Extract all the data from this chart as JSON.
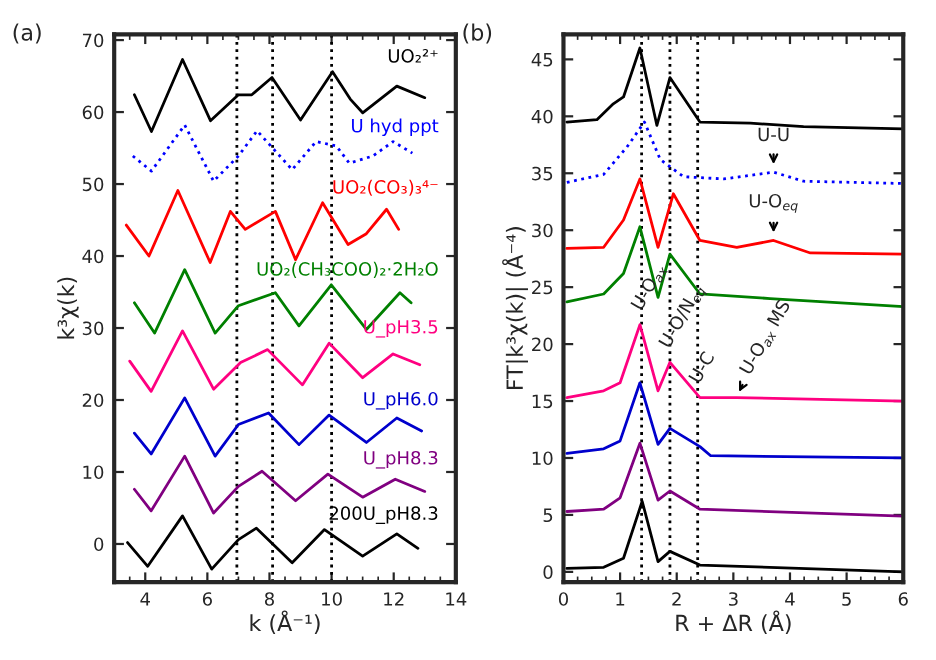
{
  "chart_data": [
    {
      "type": "line",
      "xlabel": "k (Å⁻¹)",
      "ylabel": "k³χ(k)",
      "xlim": [
        3,
        14
      ],
      "ylim": [
        -5.3,
        70.8
      ],
      "xticks": [
        4,
        6,
        8,
        10,
        12,
        14
      ],
      "yticks": [
        0,
        10,
        20,
        30,
        40,
        50,
        60,
        70
      ],
      "marker": "none",
      "legend": false,
      "grid": false,
      "annotations": [
        "(a)"
      ],
      "ref_lines": [
        {
          "axis": "x",
          "value": 6.95,
          "color": "#000000",
          "line_style": "dotted"
        },
        {
          "axis": "x",
          "value": 8.1,
          "color": "#000000",
          "line_style": "dotted"
        },
        {
          "axis": "x",
          "value": 10.0,
          "color": "#000000",
          "line_style": "dotted"
        }
      ],
      "series": [
        {
          "name": "UO₂²⁺",
          "color": "#000000",
          "line_style": "solid",
          "x": [
            3.65,
            4.2,
            5.2,
            6.1,
            7.0,
            7.43,
            8.08,
            9.0,
            10.03,
            10.6,
            11.0,
            12.1,
            13.0
          ],
          "values": [
            62.4,
            57.3,
            67.3,
            58.8,
            62.4,
            62.4,
            64.8,
            58.9,
            65.6,
            61.8,
            59.9,
            63.6,
            62.0
          ]
        },
        {
          "name": "U hyd ppt",
          "color": "#0000ff",
          "line_style": "dotted",
          "x": [
            3.6,
            4.2,
            5.27,
            6.2,
            7.0,
            7.6,
            8.73,
            9.5,
            10.15,
            10.57,
            11.33,
            11.98,
            12.6
          ],
          "values": [
            53.9,
            51.8,
            58.2,
            50.4,
            53.9,
            57.4,
            52.0,
            55.9,
            55.3,
            52.9,
            53.9,
            55.9,
            54.3
          ]
        },
        {
          "name": "UO₂(CO₃)₃⁴⁻",
          "color": "#ff0000",
          "line_style": "solid",
          "x": [
            3.39,
            4.12,
            5.05,
            6.09,
            6.74,
            7.22,
            8.19,
            8.84,
            9.71,
            10.53,
            11.12,
            11.77,
            12.16
          ],
          "values": [
            44.3,
            40.0,
            49.1,
            39.1,
            46.2,
            43.7,
            46.2,
            39.5,
            47.4,
            41.6,
            43.1,
            46.5,
            43.7
          ]
        },
        {
          "name": "UO₂(CH₃COO)₂·2H₂O",
          "color": "#008000",
          "line_style": "solid",
          "x": [
            3.65,
            4.3,
            5.27,
            6.25,
            7.0,
            8.19,
            8.95,
            9.99,
            11.12,
            12.2,
            12.56
          ],
          "values": [
            33.5,
            29.3,
            38.1,
            29.3,
            33.1,
            34.9,
            30.3,
            36.0,
            29.8,
            34.9,
            33.5
          ]
        },
        {
          "name": "U_pH3.5",
          "color": "#ff0080",
          "line_style": "solid",
          "x": [
            3.5,
            4.19,
            5.2,
            6.2,
            7.07,
            7.94,
            9.06,
            9.92,
            11.0,
            11.98,
            12.84
          ],
          "values": [
            25.4,
            21.2,
            29.6,
            21.5,
            25.2,
            27.0,
            22.1,
            27.9,
            23.1,
            26.4,
            24.9
          ]
        },
        {
          "name": "U_pH6.0",
          "color": "#0000cc",
          "line_style": "solid",
          "x": [
            3.65,
            4.19,
            5.27,
            6.25,
            7.0,
            7.97,
            8.95,
            9.92,
            11.12,
            12.1,
            12.9
          ],
          "values": [
            15.4,
            12.5,
            20.3,
            12.2,
            16.6,
            18.2,
            13.8,
            17.9,
            14.1,
            17.5,
            15.7
          ]
        },
        {
          "name": "U_pH8.3",
          "color": "#800080",
          "line_style": "solid",
          "x": [
            3.65,
            4.19,
            5.27,
            6.2,
            7.0,
            7.76,
            8.84,
            9.88,
            11.0,
            12.05,
            13.0
          ],
          "values": [
            7.6,
            4.6,
            12.2,
            4.3,
            8.0,
            10.1,
            6.0,
            9.7,
            6.5,
            9.0,
            7.3
          ]
        },
        {
          "name": "200U_pH8.3",
          "color": "#000000",
          "line_style": "solid",
          "x": [
            3.43,
            4.08,
            5.2,
            6.14,
            7.0,
            7.58,
            8.73,
            9.77,
            11.0,
            12.1,
            12.78
          ],
          "values": [
            0.2,
            -3.1,
            3.9,
            -3.5,
            0.6,
            2.2,
            -2.6,
            2.0,
            -1.7,
            1.4,
            -0.6
          ]
        }
      ]
    },
    {
      "type": "line",
      "xlabel": "R + ΔR (Å)",
      "ylabel": "FT|k³χ(k)| (Å⁻⁴)",
      "xlim": [
        0,
        6
      ],
      "ylim": [
        -0.9,
        47.2
      ],
      "xticks": [
        0,
        1,
        2,
        3,
        4,
        5,
        6
      ],
      "yticks": [
        0,
        5,
        10,
        15,
        20,
        25,
        30,
        35,
        40,
        45
      ],
      "marker": "none",
      "legend": false,
      "grid": false,
      "annotations": [
        "(b)",
        {
          "text": "U-U",
          "x": 3.71,
          "y": 35.3
        },
        {
          "text": "U-O$_{eq}$",
          "x": 3.71,
          "y": 29.3
        },
        {
          "text": "U-O$_{ax}$",
          "x": 1.38,
          "y": 22.2
        },
        {
          "text": "U-O/N$_{eq}$",
          "x": 1.9,
          "y": 18.8
        },
        {
          "text": "U-C",
          "x": 2.4,
          "y": 15.8
        },
        {
          "text": "U-O$_{ax}$ MS",
          "x": 3.1,
          "y": 15.5
        }
      ],
      "ref_lines": [
        {
          "axis": "x",
          "value": 1.38,
          "color": "#000000",
          "line_style": "dotted"
        },
        {
          "axis": "x",
          "value": 1.88,
          "color": "#000000",
          "line_style": "dotted"
        },
        {
          "axis": "x",
          "value": 2.37,
          "color": "#000000",
          "line_style": "dotted"
        }
      ],
      "series": [
        {
          "color": "#000000",
          "line_style": "solid",
          "x": [
            0.06,
            0.59,
            0.88,
            1.06,
            1.35,
            1.65,
            1.88,
            2.41,
            3.3,
            4.24,
            6.0
          ],
          "values": [
            39.5,
            39.7,
            41.1,
            41.7,
            46.0,
            39.2,
            43.4,
            39.5,
            39.4,
            39.1,
            38.9
          ]
        },
        {
          "color": "#0000ff",
          "line_style": "dotted",
          "x": [
            0.06,
            0.71,
            1.12,
            1.43,
            1.71,
            2.12,
            2.83,
            3.71,
            4.24,
            6.0
          ],
          "values": [
            34.2,
            34.9,
            37.3,
            39.5,
            36.2,
            34.7,
            34.5,
            35.1,
            34.3,
            34.1
          ]
        },
        {
          "color": "#ff0000",
          "line_style": "solid",
          "x": [
            0.06,
            0.71,
            1.06,
            1.35,
            1.67,
            1.94,
            2.41,
            3.06,
            3.71,
            4.36,
            6.0
          ],
          "values": [
            28.4,
            28.5,
            30.9,
            34.5,
            28.5,
            33.2,
            29.1,
            28.5,
            29.1,
            28.0,
            27.9
          ]
        },
        {
          "color": "#008000",
          "line_style": "solid",
          "x": [
            0.06,
            0.71,
            1.06,
            1.35,
            1.67,
            1.88,
            2.41,
            3.65,
            6.0
          ],
          "values": [
            23.7,
            24.4,
            26.2,
            30.3,
            24.1,
            27.9,
            24.4,
            24.0,
            23.3
          ]
        },
        {
          "color": "#ff0080",
          "line_style": "solid",
          "x": [
            0.06,
            0.71,
            1.0,
            1.35,
            1.67,
            1.88,
            2.41,
            3.06,
            6.0
          ],
          "values": [
            15.3,
            15.9,
            16.6,
            21.7,
            15.9,
            18.4,
            15.3,
            15.3,
            15.0
          ]
        },
        {
          "color": "#0000cc",
          "line_style": "solid",
          "x": [
            0.06,
            0.71,
            1.0,
            1.35,
            1.67,
            1.88,
            2.41,
            2.6,
            6.0
          ],
          "values": [
            10.4,
            10.8,
            11.5,
            16.6,
            11.2,
            12.6,
            11.0,
            10.2,
            10.0
          ]
        },
        {
          "color": "#800080",
          "line_style": "solid",
          "x": [
            0.06,
            0.71,
            1.0,
            1.35,
            1.67,
            1.88,
            2.41,
            6.0
          ],
          "values": [
            5.3,
            5.5,
            6.5,
            11.3,
            6.3,
            7.1,
            5.5,
            4.9
          ]
        },
        {
          "color": "#000000",
          "line_style": "solid",
          "x": [
            0.06,
            0.71,
            1.06,
            1.39,
            1.67,
            1.88,
            2.41,
            6.0
          ],
          "values": [
            0.3,
            0.4,
            1.2,
            6.2,
            0.9,
            1.8,
            0.6,
            0.0
          ]
        }
      ]
    }
  ]
}
